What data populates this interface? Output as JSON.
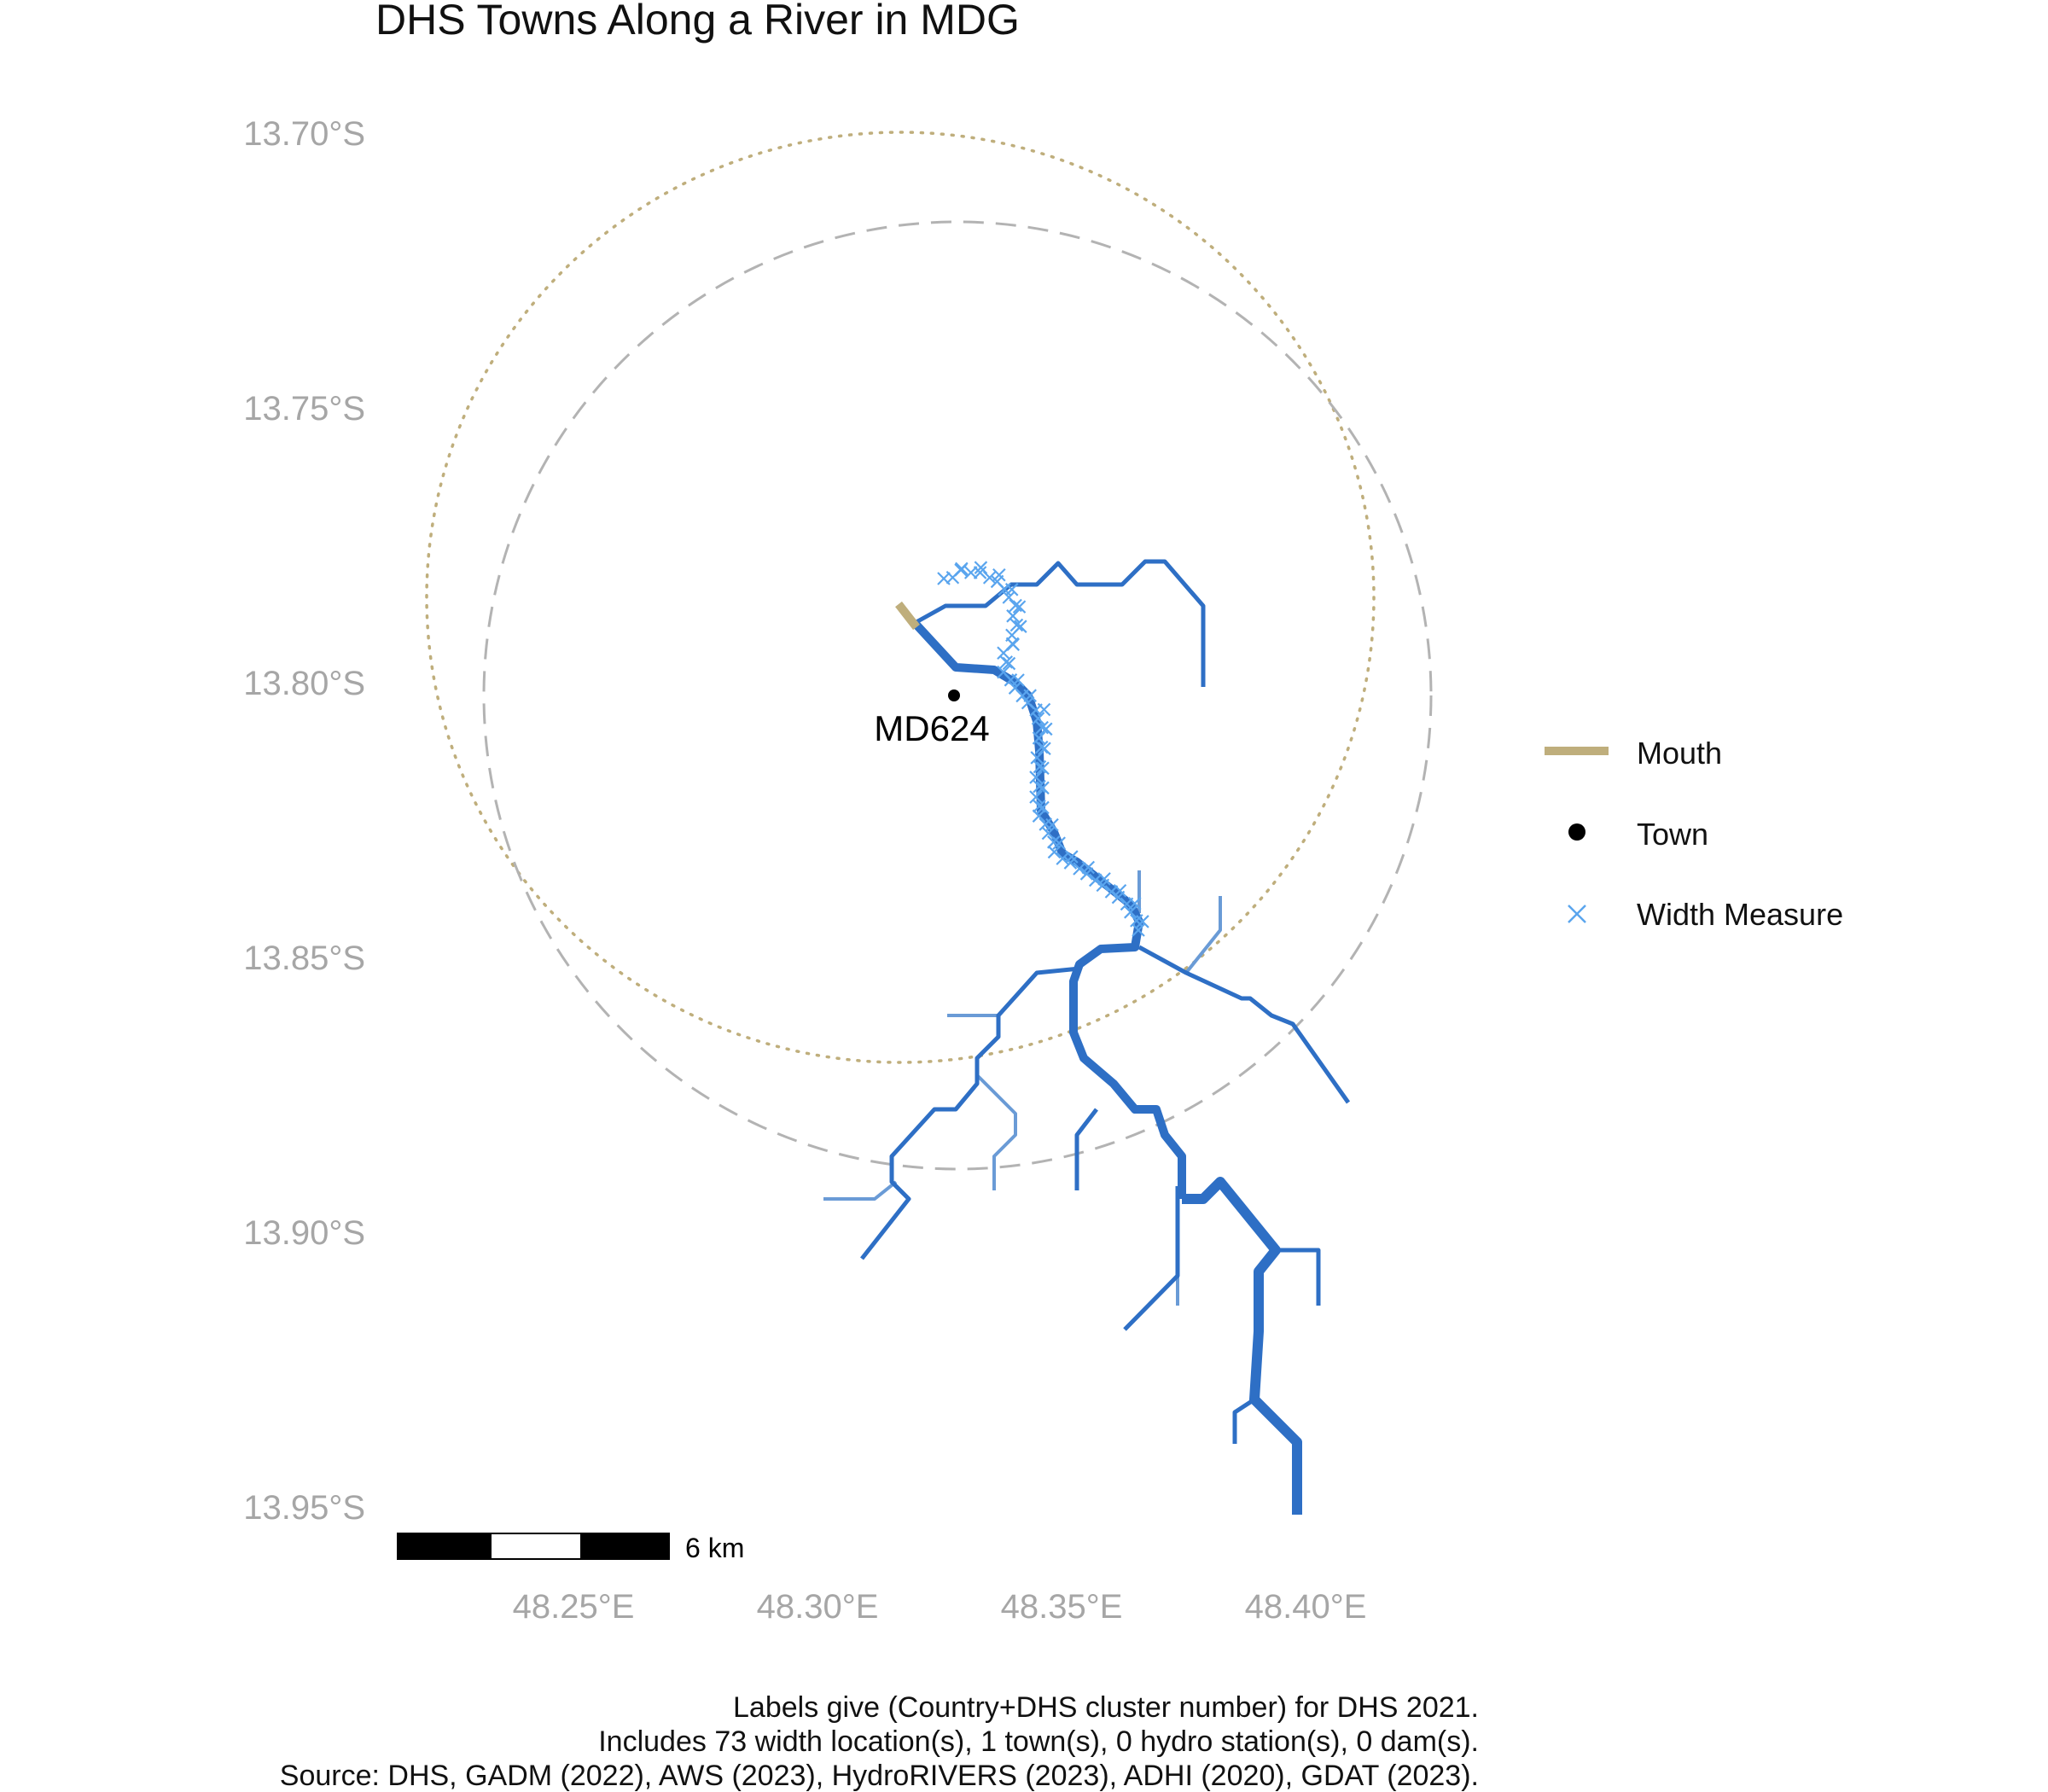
{
  "title": "DHS Towns Along a River in MDG",
  "axes": {
    "y_ticks": [
      "13.70°S",
      "13.75°S",
      "13.80°S",
      "13.85°S",
      "13.90°S",
      "13.95°S"
    ],
    "x_ticks": [
      "48.25°E",
      "48.30°E",
      "48.35°E",
      "48.40°E"
    ]
  },
  "town": {
    "label": "MD624",
    "lon": 48.326,
    "lat": -13.802
  },
  "legend": {
    "items": [
      {
        "label": "Mouth",
        "symbol": "line",
        "color": "#bfae7c"
      },
      {
        "label": "Town",
        "symbol": "dot",
        "color": "#000000"
      },
      {
        "label": "Width Measure",
        "symbol": "cross",
        "color": "#5aa5ee"
      }
    ]
  },
  "scale_bar": {
    "label": "6 km"
  },
  "colors": {
    "river": "#2e6fc5",
    "river_light": "#6a9bd6",
    "width_measure": "#5aa5ee",
    "mouth": "#bfae7c",
    "buffer_dashed": "#b3b3b3",
    "buffer_dotted": "#bfae7c"
  },
  "caption": {
    "line1": "Labels give (Country+DHS cluster number) for DHS 2021.",
    "line2": "Includes 73 width location(s), 1 town(s), 0 hydro station(s), 0 dam(s).",
    "line3": "Source: DHS, GADM (2022), AWS (2023), HydroRIVERS (2023), ADHI (2020), GDAT (2023)."
  }
}
